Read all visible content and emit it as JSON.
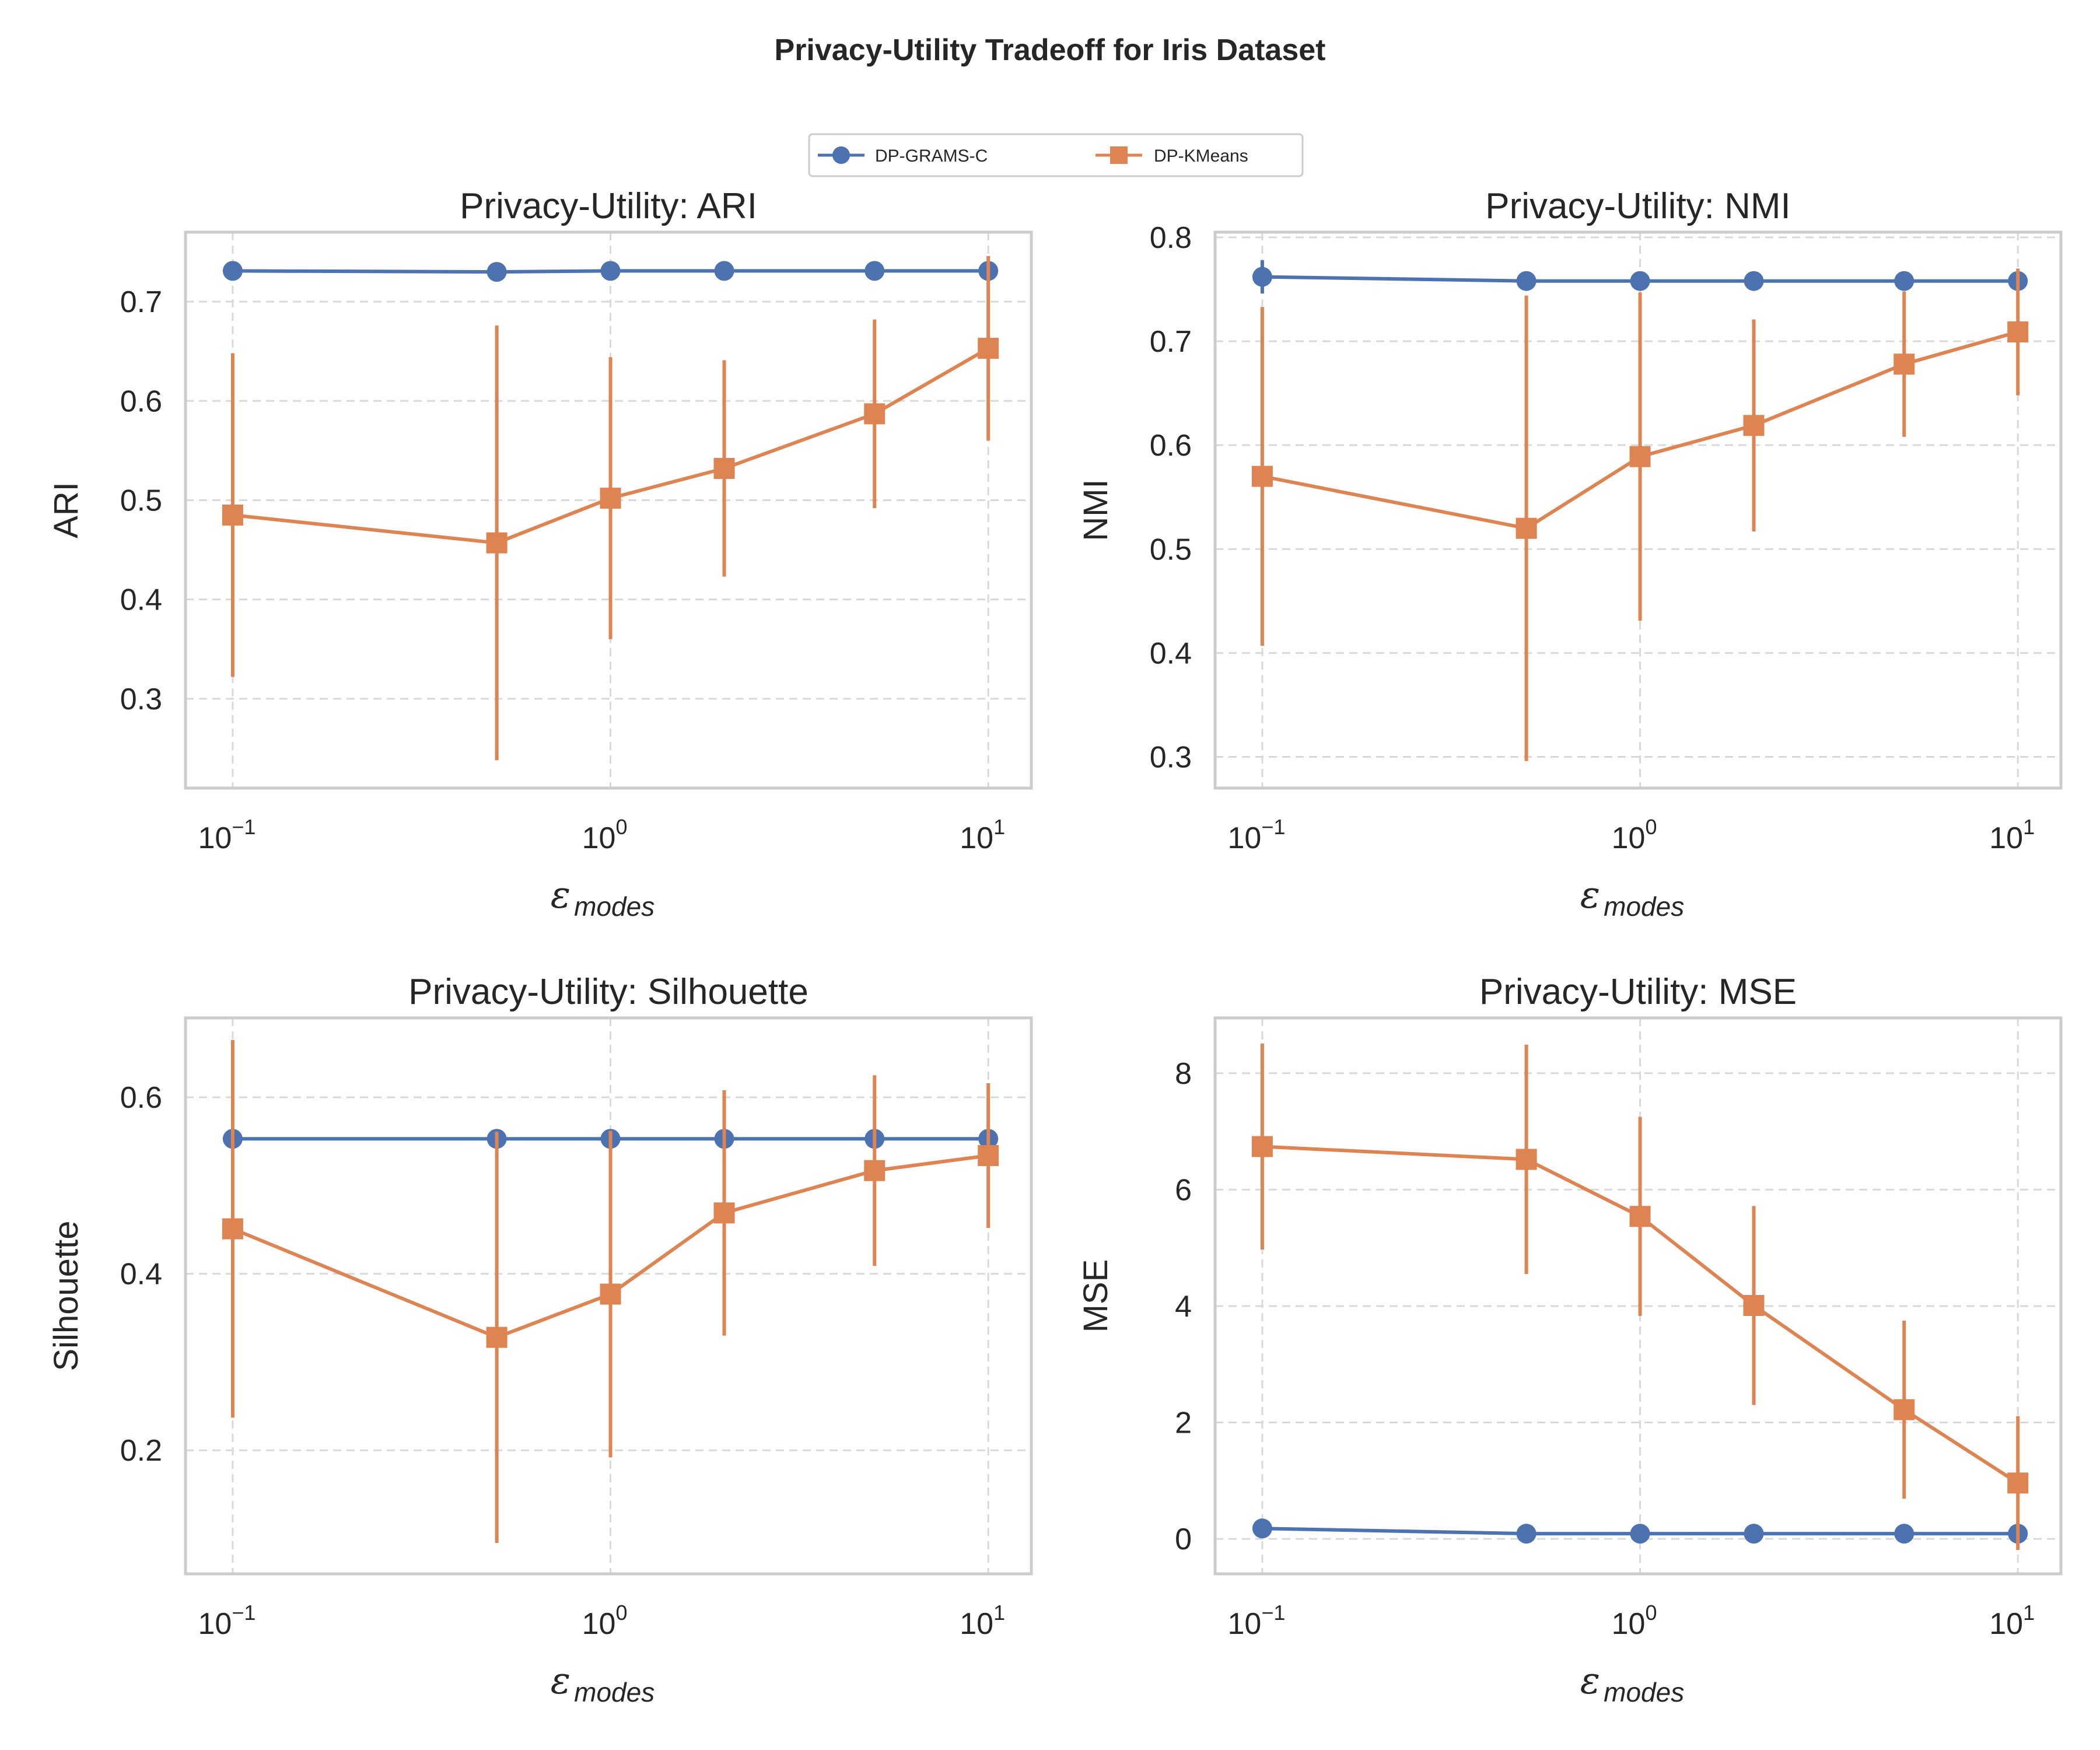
{
  "figure": {
    "title": "Privacy-Utility Tradeoff for Iris Dataset",
    "colors": {
      "DP-GRAMS-C": "#4c72b0",
      "DP-KMeans": "#dd8452"
    }
  },
  "legend": {
    "items": [
      "DP-GRAMS-C",
      "DP-KMeans"
    ],
    "placement": "top-center"
  },
  "chart_data": [
    {
      "type": "line",
      "title": "Privacy-Utility: ARI",
      "xlabel_symbol": "ε",
      "xlabel_sub": "modes",
      "ylabel": "ARI",
      "xscale": "log",
      "xlim": [
        0.075,
        13
      ],
      "ylim": [
        0.21,
        0.77
      ],
      "xticks": [
        0.1,
        1,
        10
      ],
      "xtick_labels": [
        {
          "base": "10",
          "exp": "−1"
        },
        {
          "base": "10",
          "exp": "0"
        },
        {
          "base": "10",
          "exp": "1"
        }
      ],
      "yticks": [
        0.3,
        0.4,
        0.5,
        0.6,
        0.7
      ],
      "ytick_labels": [
        "0.3",
        "0.4",
        "0.5",
        "0.6",
        "0.7"
      ],
      "grid": true,
      "x": [
        0.1,
        0.5,
        1,
        2,
        5,
        10
      ],
      "series": [
        {
          "name": "DP-GRAMS-C",
          "marker": "circle",
          "values": [
            0.731,
            0.73,
            0.731,
            0.731,
            0.731,
            0.731
          ],
          "err": [
            0,
            0,
            0,
            0,
            0,
            0
          ]
        },
        {
          "name": "DP-KMeans",
          "marker": "square",
          "values": [
            0.485,
            0.457,
            0.502,
            0.532,
            0.587,
            0.653
          ],
          "err": [
            0.163,
            0.219,
            0.142,
            0.109,
            0.095,
            0.093
          ]
        }
      ]
    },
    {
      "type": "line",
      "title": "Privacy-Utility: NMI",
      "xlabel_symbol": "ε",
      "xlabel_sub": "modes",
      "ylabel": "NMI",
      "xscale": "log",
      "xlim": [
        0.075,
        13
      ],
      "ylim": [
        0.27,
        0.805
      ],
      "xticks": [
        0.1,
        1,
        10
      ],
      "xtick_labels": [
        {
          "base": "10",
          "exp": "−1"
        },
        {
          "base": "10",
          "exp": "0"
        },
        {
          "base": "10",
          "exp": "1"
        }
      ],
      "yticks": [
        0.3,
        0.4,
        0.5,
        0.6,
        0.7,
        0.8
      ],
      "ytick_labels": [
        "0.3",
        "0.4",
        "0.5",
        "0.6",
        "0.7",
        "0.8"
      ],
      "grid": true,
      "x": [
        0.1,
        0.5,
        1,
        2,
        5,
        10
      ],
      "series": [
        {
          "name": "DP-GRAMS-C",
          "marker": "circle",
          "values": [
            0.762,
            0.758,
            0.758,
            0.758,
            0.758,
            0.758
          ],
          "err": [
            0.016,
            0,
            0,
            0,
            0,
            0
          ]
        },
        {
          "name": "DP-KMeans",
          "marker": "square",
          "values": [
            0.57,
            0.52,
            0.589,
            0.619,
            0.678,
            0.709
          ],
          "err": [
            0.163,
            0.224,
            0.158,
            0.102,
            0.07,
            0.061
          ]
        }
      ]
    },
    {
      "type": "line",
      "title": "Privacy-Utility: Silhouette",
      "xlabel_symbol": "ε",
      "xlabel_sub": "modes",
      "ylabel": "Silhouette",
      "xscale": "log",
      "xlim": [
        0.075,
        13
      ],
      "ylim": [
        0.06,
        0.69
      ],
      "xticks": [
        0.1,
        1,
        10
      ],
      "xtick_labels": [
        {
          "base": "10",
          "exp": "−1"
        },
        {
          "base": "10",
          "exp": "0"
        },
        {
          "base": "10",
          "exp": "1"
        }
      ],
      "yticks": [
        0.2,
        0.4,
        0.6
      ],
      "ytick_labels": [
        "0.2",
        "0.4",
        "0.6"
      ],
      "grid": true,
      "x": [
        0.1,
        0.5,
        1,
        2,
        5,
        10
      ],
      "series": [
        {
          "name": "DP-GRAMS-C",
          "marker": "circle",
          "values": [
            0.553,
            0.553,
            0.553,
            0.553,
            0.553,
            0.553
          ],
          "err": [
            0,
            0,
            0,
            0,
            0,
            0
          ]
        },
        {
          "name": "DP-KMeans",
          "marker": "square",
          "values": [
            0.451,
            0.328,
            0.377,
            0.469,
            0.517,
            0.534
          ],
          "err": [
            0.214,
            0.233,
            0.185,
            0.139,
            0.108,
            0.082
          ]
        }
      ]
    },
    {
      "type": "line",
      "title": "Privacy-Utility: MSE",
      "xlabel_symbol": "ε",
      "xlabel_sub": "modes",
      "ylabel": "MSE",
      "xscale": "log",
      "xlim": [
        0.075,
        13
      ],
      "ylim": [
        -0.6,
        8.95
      ],
      "xticks": [
        0.1,
        1,
        10
      ],
      "xtick_labels": [
        {
          "base": "10",
          "exp": "−1"
        },
        {
          "base": "10",
          "exp": "0"
        },
        {
          "base": "10",
          "exp": "1"
        }
      ],
      "yticks": [
        0,
        2,
        4,
        6,
        8
      ],
      "ytick_labels": [
        "0",
        "2",
        "4",
        "6",
        "8"
      ],
      "grid": true,
      "x": [
        0.1,
        0.5,
        1,
        2,
        5,
        10
      ],
      "series": [
        {
          "name": "DP-GRAMS-C",
          "marker": "circle",
          "values": [
            0.18,
            0.09,
            0.09,
            0.09,
            0.09,
            0.09
          ],
          "err": [
            0,
            0,
            0,
            0,
            0,
            0
          ]
        },
        {
          "name": "DP-KMeans",
          "marker": "square",
          "values": [
            6.74,
            6.52,
            5.54,
            4.01,
            2.22,
            0.96
          ],
          "err": [
            1.77,
            1.97,
            1.71,
            1.71,
            1.53,
            1.15
          ]
        }
      ]
    }
  ]
}
